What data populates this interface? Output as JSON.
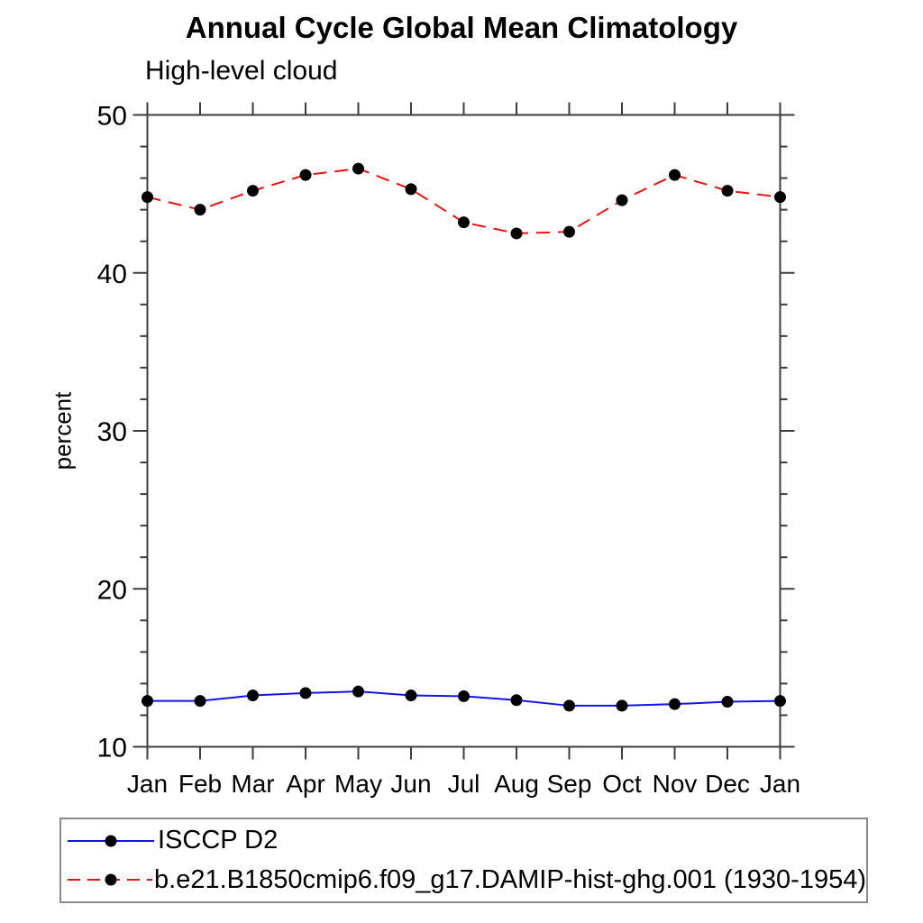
{
  "chart_data": {
    "type": "line",
    "title": "Annual Cycle Global Mean Climatology",
    "subtitle": "High-level cloud",
    "xlabel": "",
    "ylabel": "percent",
    "categories": [
      "Jan",
      "Feb",
      "Mar",
      "Apr",
      "May",
      "Jun",
      "Jul",
      "Aug",
      "Sep",
      "Oct",
      "Nov",
      "Dec",
      "Jan"
    ],
    "ylim": [
      10,
      50
    ],
    "ytick_major": [
      10,
      20,
      30,
      40,
      50
    ],
    "ytick_minor_step": 2,
    "grid": false,
    "legend_position": "bottom-left",
    "axis_color": "#3d3d3d",
    "marker_color": "#000000",
    "legend_border_color": "#8a8a8a",
    "series": [
      {
        "name": "ISCCP D2",
        "color": "#1414e6",
        "dash": "solid",
        "values": [
          12.9,
          12.9,
          13.25,
          13.4,
          13.5,
          13.25,
          13.2,
          12.95,
          12.6,
          12.6,
          12.7,
          12.85,
          12.9
        ]
      },
      {
        "name": "b.e21.B1850cmip6.f09_g17.DAMIP-hist-ghg.001 (1930-1954)",
        "color": "#ee1111",
        "dash": "dashed",
        "values": [
          44.8,
          44.0,
          45.2,
          46.2,
          46.6,
          45.3,
          43.2,
          42.5,
          42.6,
          44.6,
          46.2,
          45.2,
          44.8
        ]
      }
    ]
  }
}
